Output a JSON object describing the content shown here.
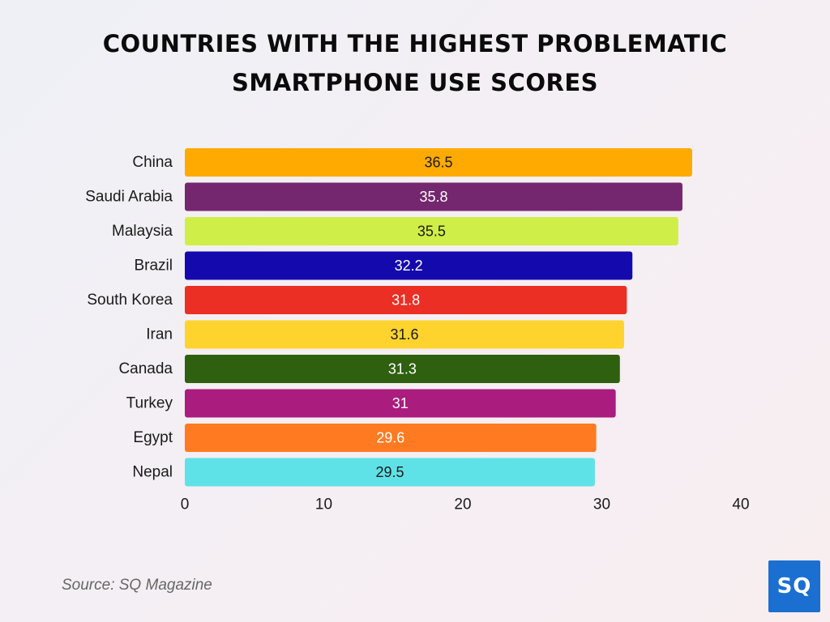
{
  "title_lines": [
    "COUNTRIES WITH THE HIGHEST PROBLEMATIC",
    "SMARTPHONE USE SCORES"
  ],
  "source": "Source: SQ Magazine",
  "logo_text": "SQ",
  "chart_data": {
    "type": "bar",
    "orientation": "horizontal",
    "title": "COUNTRIES WITH THE HIGHEST PROBLEMATIC SMARTPHONE USE SCORES",
    "xlabel": "",
    "ylabel": "",
    "xlim": [
      0,
      40
    ],
    "ticks": [
      0,
      10,
      20,
      30,
      40
    ],
    "grid": false,
    "categories": [
      "China",
      "Saudi Arabia",
      "Malaysia",
      "Brazil",
      "South Korea",
      "Iran",
      "Canada",
      "Turkey",
      "Egypt",
      "Nepal"
    ],
    "values": [
      36.5,
      35.8,
      35.5,
      32.2,
      31.8,
      31.6,
      31.3,
      31,
      29.6,
      29.5
    ],
    "value_labels": [
      "36.5",
      "35.8",
      "35.5",
      "32.2",
      "31.8",
      "31.6",
      "31.3",
      "31",
      "29.6",
      "29.5"
    ],
    "colors": [
      "#FFAA00",
      "#74276F",
      "#CFEE47",
      "#1409AD",
      "#EB2F24",
      "#FFD32E",
      "#2F6010",
      "#AA1C7D",
      "#FF7A21",
      "#5FE2E7"
    ],
    "label_colors": [
      "#1a1a1a",
      "#ffffff",
      "#1a1a1a",
      "#ffffff",
      "#ffffff",
      "#1a1a1a",
      "#ffffff",
      "#ffffff",
      "#ffffff",
      "#1a1a1a"
    ]
  }
}
